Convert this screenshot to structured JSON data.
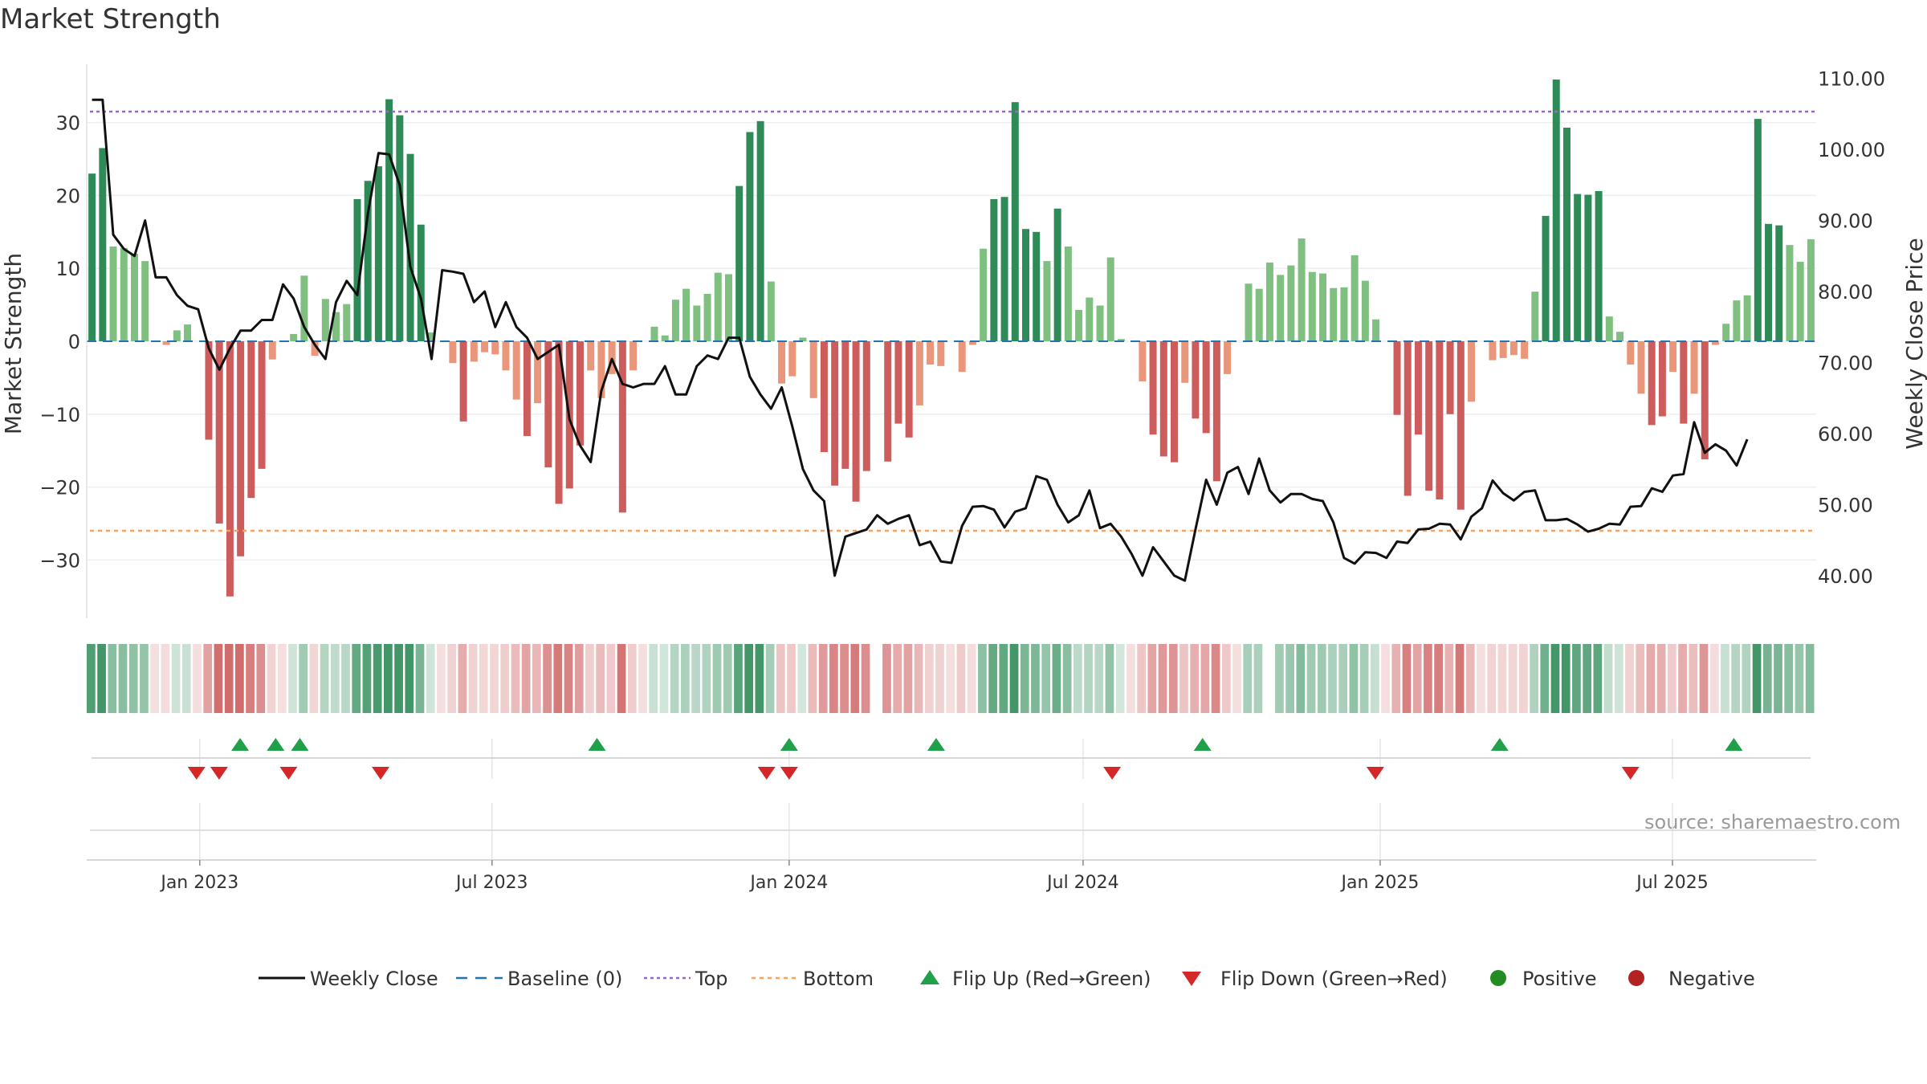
{
  "title": "Market Strength",
  "source": "source: sharemaestro.com",
  "colors": {
    "strong_pos": "#2e8b57",
    "weak_pos": "#7fbf7f",
    "strong_neg": "#cd5c5c",
    "weak_neg": "#e9967a",
    "close": "#111111",
    "baseline": "#1f77b4",
    "top": "#9966cc",
    "bottom": "#f4a460",
    "flip_up": "#21a04a",
    "flip_down": "#d62728",
    "positive": "#228b22",
    "negative": "#b22222"
  },
  "chart_data": {
    "type": "bar+line",
    "title": "Market Strength",
    "ylabel_left": "Market Strength",
    "ylabel_right": "Weekly Close Price",
    "ylim_left": [
      -38,
      38
    ],
    "ylim_right": [
      34,
      112
    ],
    "left_ticks": [
      30,
      20,
      10,
      0,
      -10,
      -20,
      -30
    ],
    "left_tick_labels": [
      "30",
      "20",
      "10",
      "0",
      "−10",
      "−20",
      "−30"
    ],
    "right_ticks": [
      110,
      100,
      90,
      80,
      70,
      60,
      50,
      40
    ],
    "right_tick_labels": [
      "110.00",
      "100.00",
      "90.00",
      "80.00",
      "70.00",
      "60.00",
      "50.00",
      "40.00"
    ],
    "x_start": "2022-10-23",
    "x_end": "2025-09-28",
    "x_ticks": [
      {
        "date": "2023-01-01",
        "label": "Jan 2023"
      },
      {
        "date": "2023-07-01",
        "label": "Jul 2023"
      },
      {
        "date": "2024-01-01",
        "label": "Jan 2024"
      },
      {
        "date": "2024-07-01",
        "label": "Jul 2024"
      },
      {
        "date": "2025-01-01",
        "label": "Jan 2025"
      },
      {
        "date": "2025-07-01",
        "label": "Jul 2025"
      }
    ],
    "top_line": 31.5,
    "bottom_line": -26,
    "strength": [
      23,
      26.5,
      13,
      12.8,
      12,
      11,
      0,
      -0.5,
      1.5,
      2.3,
      0,
      -13.5,
      -25,
      -35,
      -29.5,
      -21.5,
      -17.5,
      -2.5,
      0,
      1,
      9,
      -2,
      5.8,
      4,
      5.1,
      19.5,
      22,
      24,
      33.2,
      31,
      25.7,
      16,
      1.2,
      0,
      -3,
      -11,
      -2.8,
      -1.5,
      -1.8,
      -4,
      -8,
      -13,
      -8.5,
      -17.3,
      -22.3,
      -20.2,
      -14.3,
      -4,
      -7.8,
      -4.5,
      -23.5,
      -4,
      0,
      2,
      0.8,
      5.7,
      7.2,
      4.9,
      6.5,
      9.4,
      9.2,
      21.3,
      28.7,
      30.2,
      8.2,
      -5.8,
      -4.8,
      0.5,
      -7.8,
      -15.2,
      -19.8,
      -17.5,
      -22,
      -17.8,
      0,
      -16.5,
      -11.3,
      -13.2,
      -8.8,
      -3.2,
      -3.4,
      0,
      -4.2,
      -0.5,
      12.7,
      19.5,
      19.8,
      32.8,
      15.4,
      15,
      11,
      18.2,
      13,
      4.3,
      6,
      4.9,
      11.5,
      0.3,
      0,
      -5.5,
      -12.8,
      -15.8,
      -16.6,
      -5.7,
      -10.6,
      -12.6,
      -19.2,
      -4.5,
      0,
      7.9,
      7.2,
      10.8,
      9.1,
      10.4,
      14.1,
      9.5,
      9.3,
      7.3,
      7.4,
      11.8,
      8.3,
      3,
      0,
      -10.1,
      -21.2,
      -12.8,
      -20.5,
      -21.7,
      -10,
      -23.1,
      -8.3,
      0,
      -2.6,
      -2.3,
      -1.9,
      -2.4,
      6.8,
      17.2,
      35.9,
      29.3,
      20.2,
      20.1,
      20.6,
      3.4,
      1.3,
      -3.2,
      -7.2,
      -11.5,
      -10.3,
      -4.2,
      -11.3,
      -7.2,
      -16.2,
      -0.5,
      2.4,
      5.6,
      6.3,
      30.5,
      16.1,
      15.9,
      13.2,
      10.9,
      14
    ],
    "close": [
      107,
      107,
      88,
      86,
      85,
      90,
      82,
      82,
      79.5,
      78,
      77.5,
      72,
      69,
      72,
      74.5,
      74.5,
      76,
      76,
      81,
      79,
      75,
      72.5,
      70.5,
      78.5,
      81.5,
      79.5,
      91,
      99.5,
      99.3,
      95,
      83.5,
      79,
      70.5,
      83,
      82.8,
      82.5,
      78.5,
      80,
      75,
      78.5,
      75,
      73.5,
      70.5,
      71.5,
      72.5,
      62,
      58.3,
      56,
      66,
      70.5,
      67,
      66.5,
      67,
      67,
      69.5,
      65.5,
      65.5,
      69.5,
      71,
      70.5,
      73.5,
      73.5,
      68,
      65.5,
      63.5,
      66.5,
      61,
      55,
      52,
      50.5,
      40,
      45.5,
      46,
      46.5,
      48.5,
      47.3,
      48,
      48.5,
      44.3,
      44.8,
      42,
      41.8,
      47,
      49.7,
      49.8,
      49.3,
      46.8,
      49,
      49.5,
      54,
      53.5,
      50,
      47.5,
      48.5,
      52,
      46.7,
      47.3,
      45.5,
      43,
      40,
      44,
      42,
      40,
      39.3,
      46.5,
      53.5,
      50,
      54.5,
      55.3,
      51.5,
      56.5,
      52,
      50.3,
      51.5,
      51.5,
      50.8,
      50.5,
      47.5,
      42.5,
      41.7,
      43.3,
      43.2,
      42.5,
      44.8,
      44.6,
      46.5,
      46.6,
      47.3,
      47.2,
      45.1,
      48.3,
      49.5,
      53.4,
      51.6,
      50.6,
      51.8,
      52,
      47.8,
      47.8,
      48,
      47.2,
      46.2,
      46.6,
      47.3,
      47.2,
      49.7,
      49.8,
      52.3,
      51.8,
      54.1,
      54.3,
      61.6,
      57.3,
      58.5,
      57.6,
      55.5,
      59.2
    ],
    "heat_gaps": [
      74,
      111
    ],
    "flip_up_dates": [
      "2023-01-26",
      "2023-02-17",
      "2023-03-04",
      "2023-09-04",
      "2024-01-01",
      "2024-04-01",
      "2024-09-13",
      "2025-03-16",
      "2025-08-08"
    ],
    "flip_down_dates": [
      "2022-12-30",
      "2023-01-13",
      "2023-02-25",
      "2023-04-23",
      "2023-12-18",
      "2024-01-01",
      "2024-07-19",
      "2024-12-29",
      "2025-06-05"
    ],
    "legend": [
      {
        "key": "close",
        "label": "Weekly Close"
      },
      {
        "key": "baseline",
        "label": "Baseline (0)"
      },
      {
        "key": "top",
        "label": "Top"
      },
      {
        "key": "bottom",
        "label": "Bottom"
      },
      {
        "key": "flip_up",
        "label": "Flip Up (Red→Green)"
      },
      {
        "key": "flip_down",
        "label": "Flip Down (Green→Red)"
      },
      {
        "key": "positive",
        "label": "Positive"
      },
      {
        "key": "negative",
        "label": "Negative"
      }
    ]
  }
}
